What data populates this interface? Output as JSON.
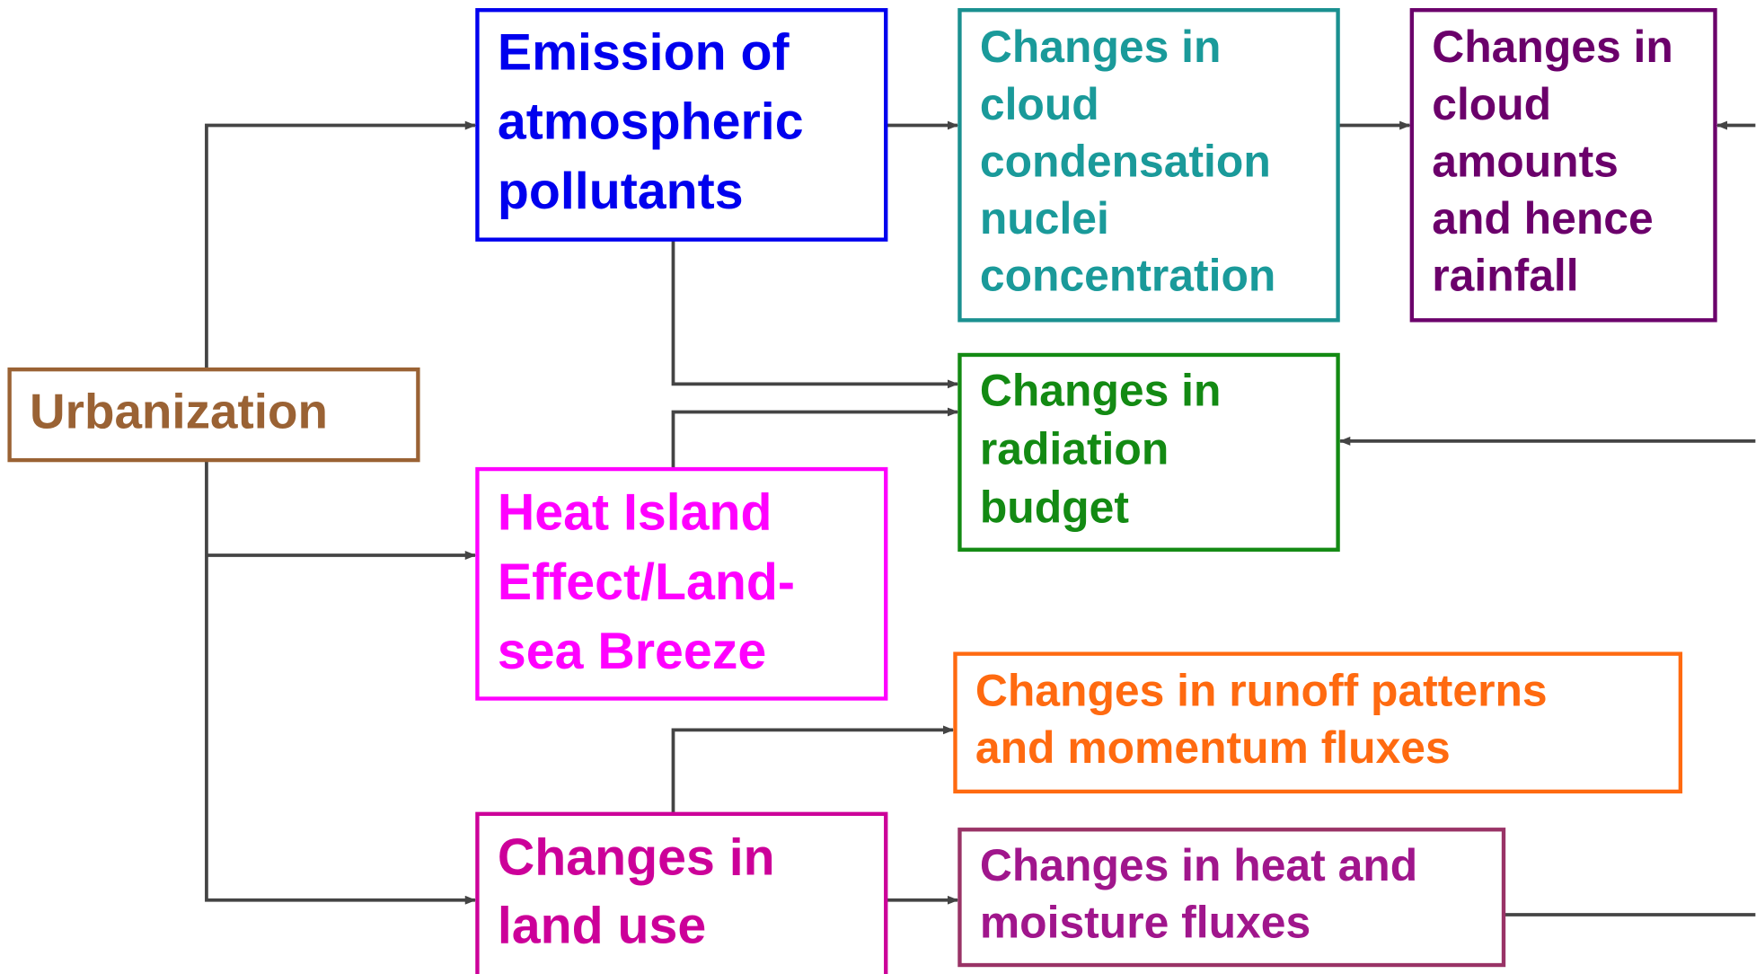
{
  "nodes": [
    {
      "id": "urbanization",
      "lines": [
        "Urbanization"
      ]
    },
    {
      "id": "emission",
      "lines": [
        "Emission of",
        "atmospheric",
        "pollutants"
      ]
    },
    {
      "id": "ccn",
      "lines": [
        "Changes in",
        "cloud",
        "condensation",
        "nuclei",
        "concentration"
      ]
    },
    {
      "id": "cloud-amounts",
      "lines": [
        "Changes in",
        "cloud",
        "amounts",
        "and hence",
        "rainfall"
      ]
    },
    {
      "id": "radiation",
      "lines": [
        "Changes in",
        "radiation",
        "budget"
      ]
    },
    {
      "id": "heat-island",
      "lines": [
        "Heat Island",
        "Effect/Land-",
        "sea Breeze"
      ]
    },
    {
      "id": "runoff",
      "lines": [
        "Changes in runoff patterns",
        "and momentum fluxes"
      ]
    },
    {
      "id": "land-use",
      "lines": [
        "Changes in",
        "land use"
      ]
    },
    {
      "id": "heat-moisture",
      "lines": [
        "Changes in heat and",
        "moisture fluxes"
      ]
    }
  ]
}
